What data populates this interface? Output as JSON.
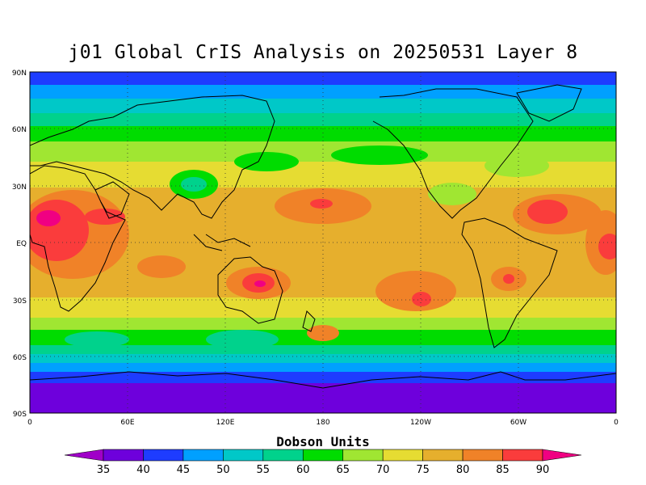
{
  "title": "j01 Global CrIS Analysis on 20250531 Layer 8",
  "map": {
    "lat_ticks": [
      "90N",
      "60N",
      "30N",
      "EQ",
      "30S",
      "60S",
      "90S"
    ],
    "lon_ticks": [
      "0",
      "60E",
      "120E",
      "180",
      "120W",
      "60W",
      "0"
    ],
    "grid_lines": "dotted"
  },
  "colorbar": {
    "units": "Dobson Units",
    "levels": [
      "35",
      "40",
      "45",
      "50",
      "55",
      "60",
      "65",
      "70",
      "75",
      "80",
      "85",
      "90"
    ],
    "colors": [
      "#a000c8",
      "#6e00dc",
      "#1e3cff",
      "#00a0ff",
      "#00c8c8",
      "#00d28c",
      "#00dc00",
      "#a0e632",
      "#e6dc32",
      "#e6af2d",
      "#f08228",
      "#fa3c3c",
      "#f00082"
    ]
  }
}
